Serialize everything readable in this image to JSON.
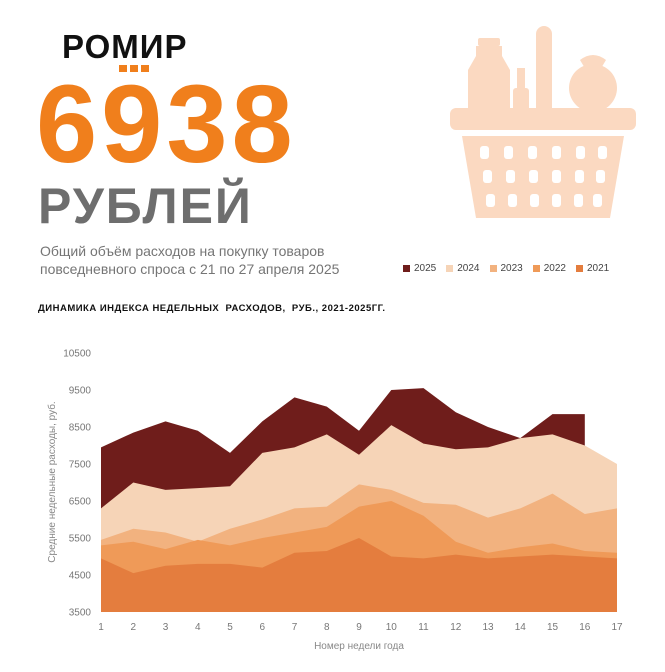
{
  "brand": {
    "name": "РОМИР"
  },
  "headline": {
    "value": "6938",
    "unit": "РУБЛЕЙ"
  },
  "subtitle": "Общий объём расходов на покупку товаров повседневного спроса с 21 по 27 апреля 2025",
  "colors": {
    "accent": "#f07f1c",
    "unit_text": "#6e6e6e",
    "basket": "#fbd9c1"
  },
  "icons": {
    "basket": "shopping-basket-icon"
  },
  "chart_data": {
    "type": "area",
    "title": "ДИНАМИКА ИНДЕКСА НЕДЕЛЬНЫХ  РАСХОДОВ,  РУБ., 2021-2025ГГ.",
    "xlabel": "Номер недели года",
    "ylabel": "Средние недельные расходы, руб.",
    "x": [
      1,
      2,
      3,
      4,
      5,
      6,
      7,
      8,
      9,
      10,
      11,
      12,
      13,
      14,
      15,
      16,
      17
    ],
    "ylim": [
      3500,
      10500
    ],
    "yticks": [
      3500,
      4500,
      5500,
      6500,
      7500,
      8500,
      9500,
      10500
    ],
    "legend_position": "top-right",
    "grid": false,
    "series": [
      {
        "name": "2025",
        "color": "#6f1d1b",
        "values": [
          7950,
          8350,
          8650,
          8400,
          7800,
          8650,
          9300,
          9050,
          8400,
          9500,
          9550,
          8900,
          8500,
          8200,
          8850,
          8850,
          null
        ]
      },
      {
        "name": "2024",
        "color": "#f6d4b7",
        "values": [
          6300,
          7000,
          6800,
          6850,
          6900,
          7800,
          7950,
          8300,
          7750,
          8550,
          8050,
          7900,
          7950,
          8200,
          8300,
          8000,
          7500
        ]
      },
      {
        "name": "2023",
        "color": "#f2b27f",
        "values": [
          5450,
          5750,
          5650,
          5400,
          5750,
          6000,
          6300,
          6350,
          6950,
          6800,
          6450,
          6400,
          6050,
          6300,
          6700,
          6150,
          6300
        ]
      },
      {
        "name": "2022",
        "color": "#ef9a58",
        "values": [
          5300,
          5400,
          5200,
          5450,
          5300,
          5500,
          5650,
          5800,
          6350,
          6500,
          6100,
          5400,
          5100,
          5250,
          5350,
          5150,
          5100
        ]
      },
      {
        "name": "2021",
        "color": "#e47d3e",
        "values": [
          4950,
          4550,
          4750,
          4800,
          4800,
          4700,
          5100,
          5150,
          5500,
          5000,
          4950,
          5050,
          4950,
          5000,
          5050,
          5000,
          4950
        ]
      }
    ]
  }
}
